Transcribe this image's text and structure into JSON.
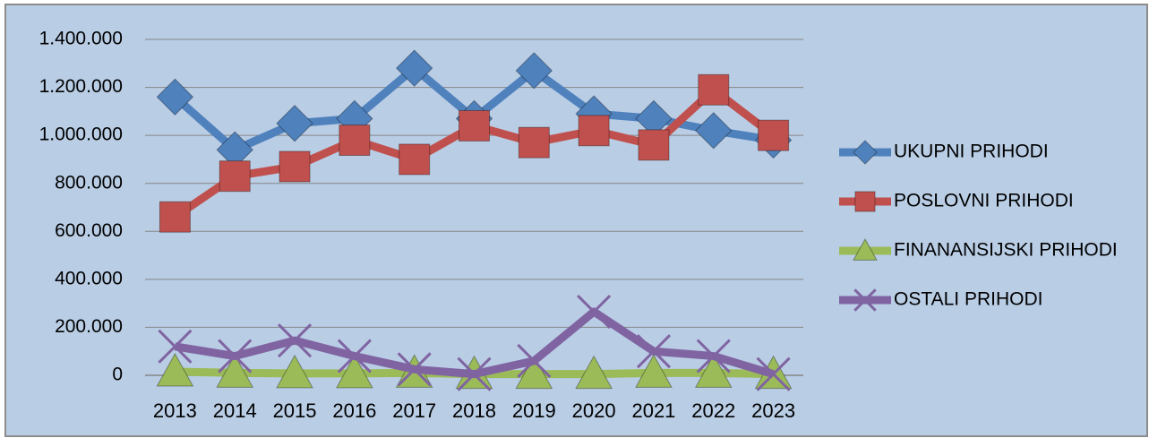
{
  "chart_data": {
    "type": "line",
    "categories": [
      "2013",
      "2014",
      "2015",
      "2016",
      "2017",
      "2018",
      "2019",
      "2020",
      "2021",
      "2022",
      "2023"
    ],
    "series": [
      {
        "name": "UKUPNI PRIHODI",
        "color": "#4f81bd",
        "marker": "diamond",
        "values": [
          1160000,
          940000,
          1050000,
          1070000,
          1280000,
          1070000,
          1270000,
          1090000,
          1070000,
          1020000,
          980000
        ]
      },
      {
        "name": "POSLOVNI PRIHODI",
        "color": "#c0504d",
        "marker": "square",
        "values": [
          660000,
          830000,
          870000,
          980000,
          900000,
          1040000,
          970000,
          1020000,
          960000,
          1190000,
          1000000
        ]
      },
      {
        "name": "FINANANSIJSKI PRIHODI",
        "color": "#9bbb59",
        "marker": "triangle",
        "values": [
          15000,
          10000,
          8000,
          8000,
          10000,
          5000,
          5000,
          5000,
          10000,
          10000,
          5000
        ]
      },
      {
        "name": "OSTALI PRIHODI",
        "color": "#8064a2",
        "marker": "x",
        "values": [
          120000,
          80000,
          145000,
          80000,
          25000,
          5000,
          60000,
          265000,
          100000,
          80000,
          5000
        ]
      }
    ],
    "ylim": [
      0,
      1400000
    ],
    "yticks": [
      0,
      {
        "value": 200000,
        "label": "200.000"
      },
      {
        "value": 400000,
        "label": "400.000"
      },
      {
        "value": 600000,
        "label": "600.000"
      },
      {
        "value": 800000,
        "label": "800.000"
      },
      {
        "value": 1000000,
        "label": "1.000.000"
      },
      {
        "value": 1200000,
        "label": "1.200.000"
      },
      {
        "value": 1400000,
        "label": "1.400.000"
      }
    ],
    "grid": true,
    "legend": "right"
  }
}
